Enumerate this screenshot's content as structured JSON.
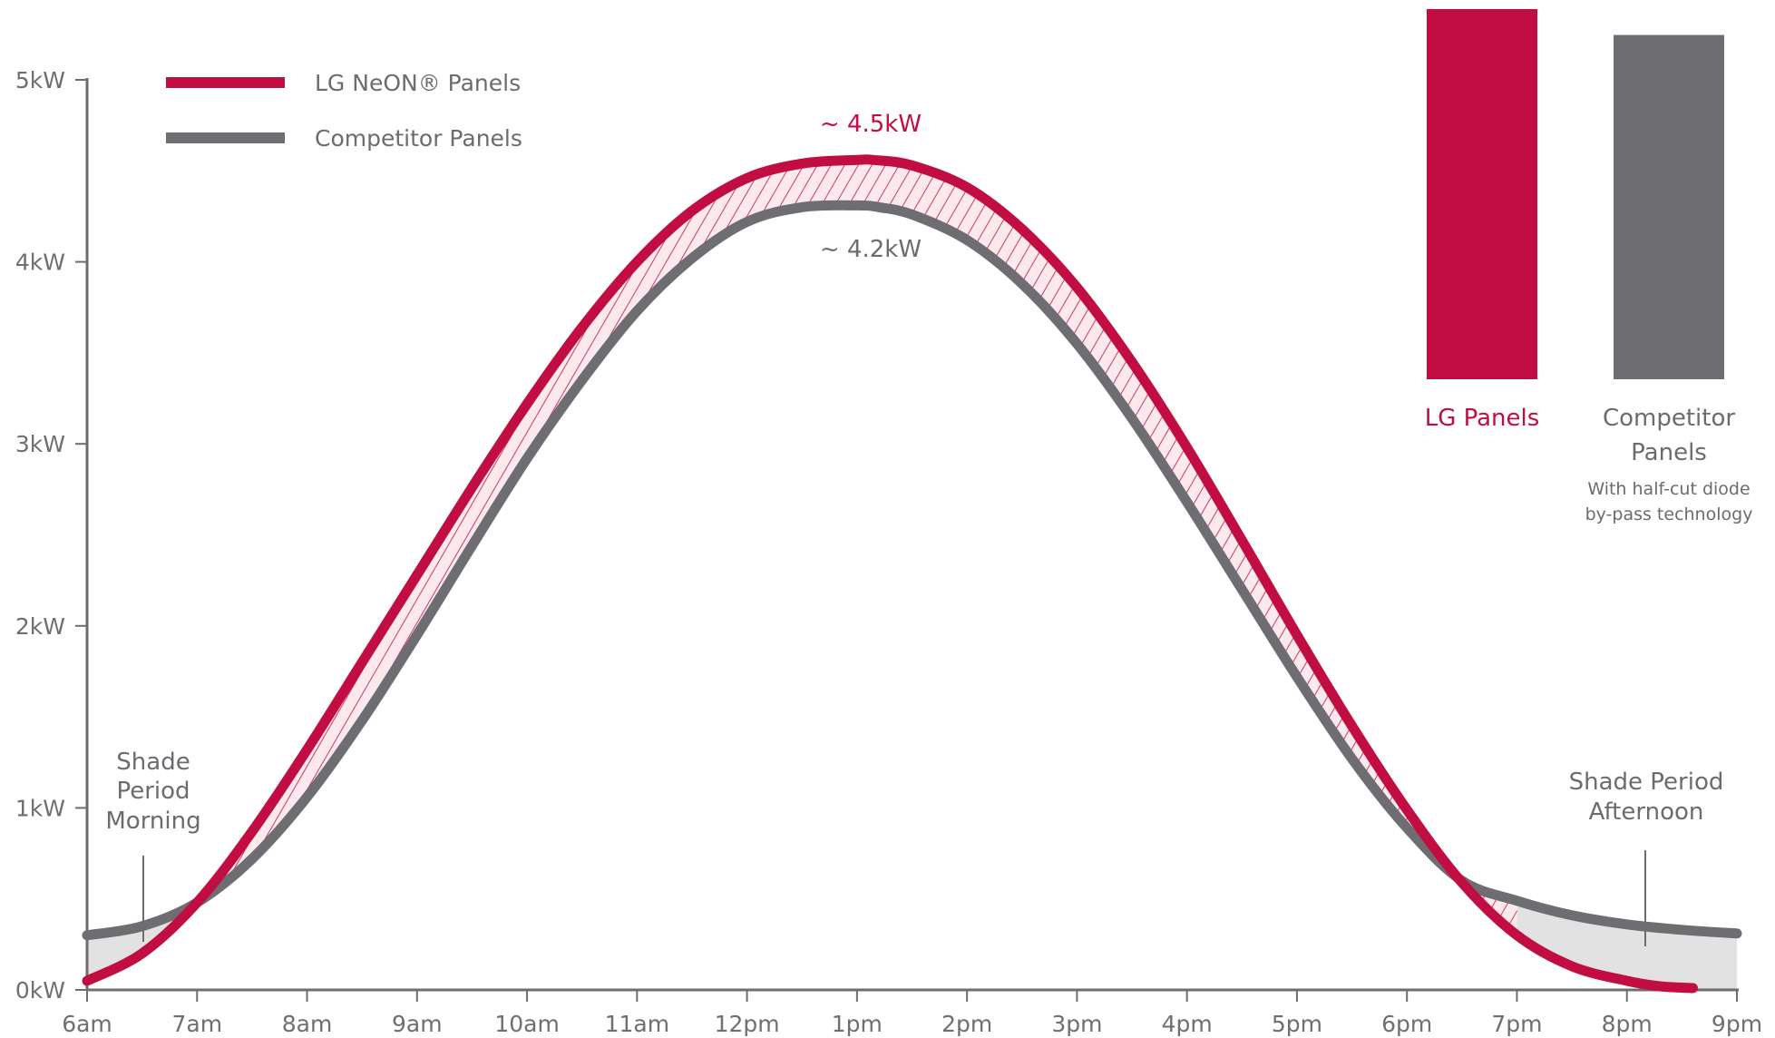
{
  "colors": {
    "lg": "#c10d42",
    "competitor": "#6d6d72",
    "hatch": "#c10d42",
    "hatch_fill": "#fbe9ee",
    "shade_fill": "#e2e2e2",
    "axis": "#6d6d72",
    "text": "#6b6b70"
  },
  "legend": {
    "lg_label": "LG NeON® Panels",
    "competitor_label": "Competitor Panels"
  },
  "annotations": {
    "peak_lg": "~ 4.5kW",
    "peak_competitor": "~ 4.2kW",
    "shade_morning": [
      "Shade",
      "Period",
      "Morning"
    ],
    "shade_afternoon": [
      "Shade Period",
      "Afternoon"
    ]
  },
  "bars": {
    "lg_label": "LG Panels",
    "competitor_label_lines": [
      "Competitor",
      "Panels"
    ],
    "competitor_note_lines": [
      "With half-cut diode",
      "by-pass technology"
    ],
    "lg_value": 1.0,
    "competitor_value": 0.93
  },
  "chart_data": {
    "type": "line",
    "title": "",
    "xlabel": "",
    "ylabel": "",
    "x_tick_labels": [
      "6am",
      "7am",
      "8am",
      "9am",
      "10am",
      "11am",
      "12pm",
      "1pm",
      "2pm",
      "3pm",
      "4pm",
      "5pm",
      "6pm",
      "7pm",
      "8pm",
      "9pm"
    ],
    "y_tick_labels": [
      "0kW",
      "1kW",
      "2kW",
      "3kW",
      "4kW",
      "5kW"
    ],
    "xlim": [
      6,
      21
    ],
    "ylim": [
      0,
      5
    ],
    "grid": false,
    "legend_position": "top-left",
    "series": [
      {
        "name": "LG NeON® Panels",
        "x": [
          6.0,
          6.5,
          7.0,
          7.5,
          8.0,
          8.5,
          9.0,
          9.5,
          10.0,
          10.5,
          11.0,
          11.5,
          12.0,
          12.5,
          13.0,
          13.15,
          13.5,
          14.0,
          14.5,
          15.0,
          15.5,
          16.0,
          16.5,
          17.0,
          17.5,
          18.0,
          18.5,
          19.0,
          19.5,
          20.0,
          20.3,
          20.6
        ],
        "y": [
          0.05,
          0.2,
          0.48,
          0.87,
          1.32,
          1.8,
          2.28,
          2.76,
          3.22,
          3.64,
          4.0,
          4.28,
          4.46,
          4.54,
          4.56,
          4.56,
          4.53,
          4.41,
          4.18,
          3.86,
          3.45,
          2.98,
          2.47,
          1.95,
          1.45,
          0.99,
          0.59,
          0.3,
          0.13,
          0.05,
          0.02,
          0.01
        ]
      },
      {
        "name": "Competitor Panels",
        "x": [
          6.0,
          6.5,
          7.0,
          7.5,
          8.0,
          8.5,
          9.0,
          9.5,
          10.0,
          10.5,
          11.0,
          11.5,
          12.0,
          12.5,
          13.0,
          13.2,
          13.5,
          14.0,
          14.5,
          15.0,
          15.5,
          16.0,
          16.5,
          17.0,
          17.5,
          18.0,
          18.5,
          19.0,
          19.5,
          20.0,
          20.5,
          21.0
        ],
        "y": [
          0.3,
          0.35,
          0.48,
          0.72,
          1.06,
          1.48,
          1.95,
          2.44,
          2.92,
          3.35,
          3.73,
          4.02,
          4.22,
          4.3,
          4.31,
          4.3,
          4.26,
          4.12,
          3.88,
          3.55,
          3.14,
          2.68,
          2.2,
          1.72,
          1.27,
          0.89,
          0.6,
          0.49,
          0.41,
          0.36,
          0.33,
          0.31
        ]
      }
    ]
  }
}
